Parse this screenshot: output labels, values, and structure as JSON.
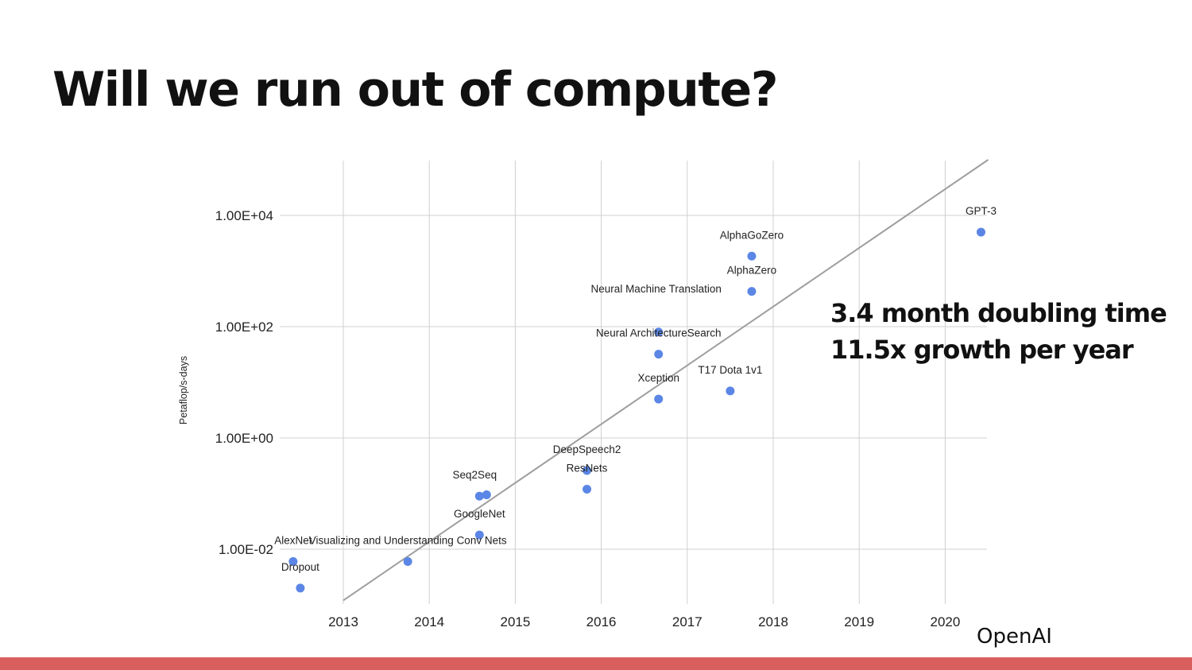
{
  "slide": {
    "title": "Will we run out of compute?",
    "annotations": [
      "3.4 month doubling time",
      "11.5x growth per year"
    ],
    "brand": "OpenAI",
    "bar_color": "#d95f5f"
  },
  "chart_data": {
    "type": "scatter",
    "ylabel": "Petaflop/s-days",
    "yscale": "log",
    "ylim": [
      0.001,
      100000
    ],
    "yticks": [
      {
        "value": 0.01,
        "label": "1.00E-02"
      },
      {
        "value": 1,
        "label": "1.00E+00"
      },
      {
        "value": 100,
        "label": "1.00E+02"
      },
      {
        "value": 10000,
        "label": "1.00E+04"
      }
    ],
    "xlim": [
      2012.3,
      2020.5
    ],
    "xticks": [
      2013,
      2014,
      2015,
      2016,
      2017,
      2018,
      2019,
      2020
    ],
    "point_color": "#5b86e5",
    "grid": true,
    "series": [
      {
        "points": [
          {
            "label": "AlexNet",
            "x": "2012-06",
            "y": 0.006
          },
          {
            "label": "Dropout",
            "x": "2012-07",
            "y": 0.002
          },
          {
            "label": "Visualizing and Understanding Conv Nets",
            "x": "2013-10",
            "y": 0.006
          },
          {
            "label": "Seq2Seq",
            "x": "2014-08",
            "y": 0.09
          },
          {
            "label": "",
            "x": "2014-09",
            "y": 0.095
          },
          {
            "label": "GoogleNet",
            "x": "2014-08",
            "y": 0.018
          },
          {
            "label": "DeepSpeech2",
            "x": "2015-11",
            "y": 0.26
          },
          {
            "label": "ResNets",
            "x": "2015-11",
            "y": 0.12
          },
          {
            "label": "Neural Machine Translation",
            "x": "2016-09",
            "y": 80
          },
          {
            "label": "Neural ArchitectureSearch",
            "x": "2016-09",
            "y": 32
          },
          {
            "label": "Xception",
            "x": "2016-09",
            "y": 5
          },
          {
            "label": "T17 Dota 1v1",
            "x": "2017-07",
            "y": 7
          },
          {
            "label": "AlphaGoZero",
            "x": "2017-10",
            "y": 1850
          },
          {
            "label": "AlphaZero",
            "x": "2017-10",
            "y": 430
          },
          {
            "label": "GPT-3",
            "x": "2020-06",
            "y": 5000
          }
        ]
      }
    ],
    "trend_line": {
      "color": "#9e9e9e",
      "points": [
        {
          "x": 2013.0,
          "y": 0.0012
        },
        {
          "x": 2020.5,
          "y": 100000
        }
      ]
    }
  }
}
